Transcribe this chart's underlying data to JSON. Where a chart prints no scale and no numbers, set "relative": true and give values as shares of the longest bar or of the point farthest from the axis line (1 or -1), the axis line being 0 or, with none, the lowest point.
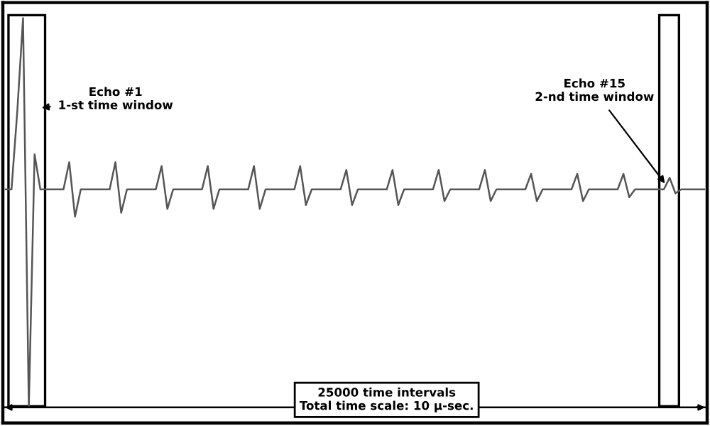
{
  "chart_data": {
    "type": "line",
    "relative": true,
    "categories": [
      null,
      null,
      null,
      null,
      null,
      null,
      null,
      null,
      null,
      null,
      null,
      null,
      null,
      null,
      null,
      null,
      null,
      null,
      null,
      null,
      null,
      null,
      null,
      null,
      null,
      null,
      null,
      null,
      null,
      null,
      null,
      null,
      null,
      null,
      null,
      null,
      null,
      null,
      null,
      null,
      null,
      null,
      null,
      null,
      null,
      null,
      null,
      null,
      null,
      null,
      null,
      null,
      null,
      null,
      null,
      null,
      null,
      null,
      null,
      null,
      null,
      null,
      null,
      null,
      null,
      null,
      null,
      null,
      null,
      null,
      null,
      null,
      null,
      null,
      null,
      null,
      null,
      null,
      null,
      null,
      null,
      null,
      null,
      null,
      null,
      null,
      null,
      null,
      null,
      null,
      null,
      null,
      null,
      null,
      null,
      null,
      null,
      null,
      null,
      null,
      null,
      null,
      null,
      null,
      null,
      null,
      null,
      null,
      null,
      null,
      null,
      null,
      null,
      null,
      null,
      null,
      null,
      null,
      null,
      null,
      null,
      null
    ],
    "series": [
      {
        "color": "#555555",
        "values": [
          0.56,
          0.56,
          0.76,
          1,
          0,
          0.65,
          0.56,
          0.56,
          0.56,
          0.56,
          0.56,
          0.63,
          0.49,
          0.56,
          0.56,
          0.56,
          0.56,
          0.56,
          0.56,
          0.63,
          0.5,
          0.56,
          0.56,
          0.56,
          0.56,
          0.56,
          0.56,
          0.62,
          0.51,
          0.56,
          0.56,
          0.56,
          0.56,
          0.56,
          0.56,
          0.62,
          0.51,
          0.56,
          0.56,
          0.56,
          0.56,
          0.56,
          0.56,
          0.62,
          0.51,
          0.56,
          0.56,
          0.56,
          0.56,
          0.56,
          0.56,
          0.62,
          0.52,
          0.56,
          0.56,
          0.56,
          0.56,
          0.56,
          0.56,
          0.61,
          0.52,
          0.56,
          0.56,
          0.56,
          0.56,
          0.56,
          0.56,
          0.61,
          0.52,
          0.56,
          0.56,
          0.56,
          0.56,
          0.56,
          0.56,
          0.61,
          0.53,
          0.56,
          0.56,
          0.56,
          0.56,
          0.56,
          0.56,
          0.61,
          0.53,
          0.56,
          0.56,
          0.56,
          0.56,
          0.56,
          0.56,
          0.6,
          0.53,
          0.56,
          0.56,
          0.56,
          0.56,
          0.56,
          0.56,
          0.6,
          0.53,
          0.56,
          0.56,
          0.56,
          0.56,
          0.56,
          0.56,
          0.6,
          0.54,
          0.56,
          0.56,
          0.56,
          0.56,
          0.56,
          0.56,
          0.59,
          0.55,
          0.56,
          0.56,
          0.56,
          0.56,
          0.56
        ]
      }
    ],
    "annotations": [
      "Echo #1\n1-st time window",
      "Echo #15\n2-nd time window",
      "25000 time intervals\nTotal time scale: 10 μ-sec."
    ],
    "legend": false,
    "marker": "none",
    "line_style": "solid"
  }
}
